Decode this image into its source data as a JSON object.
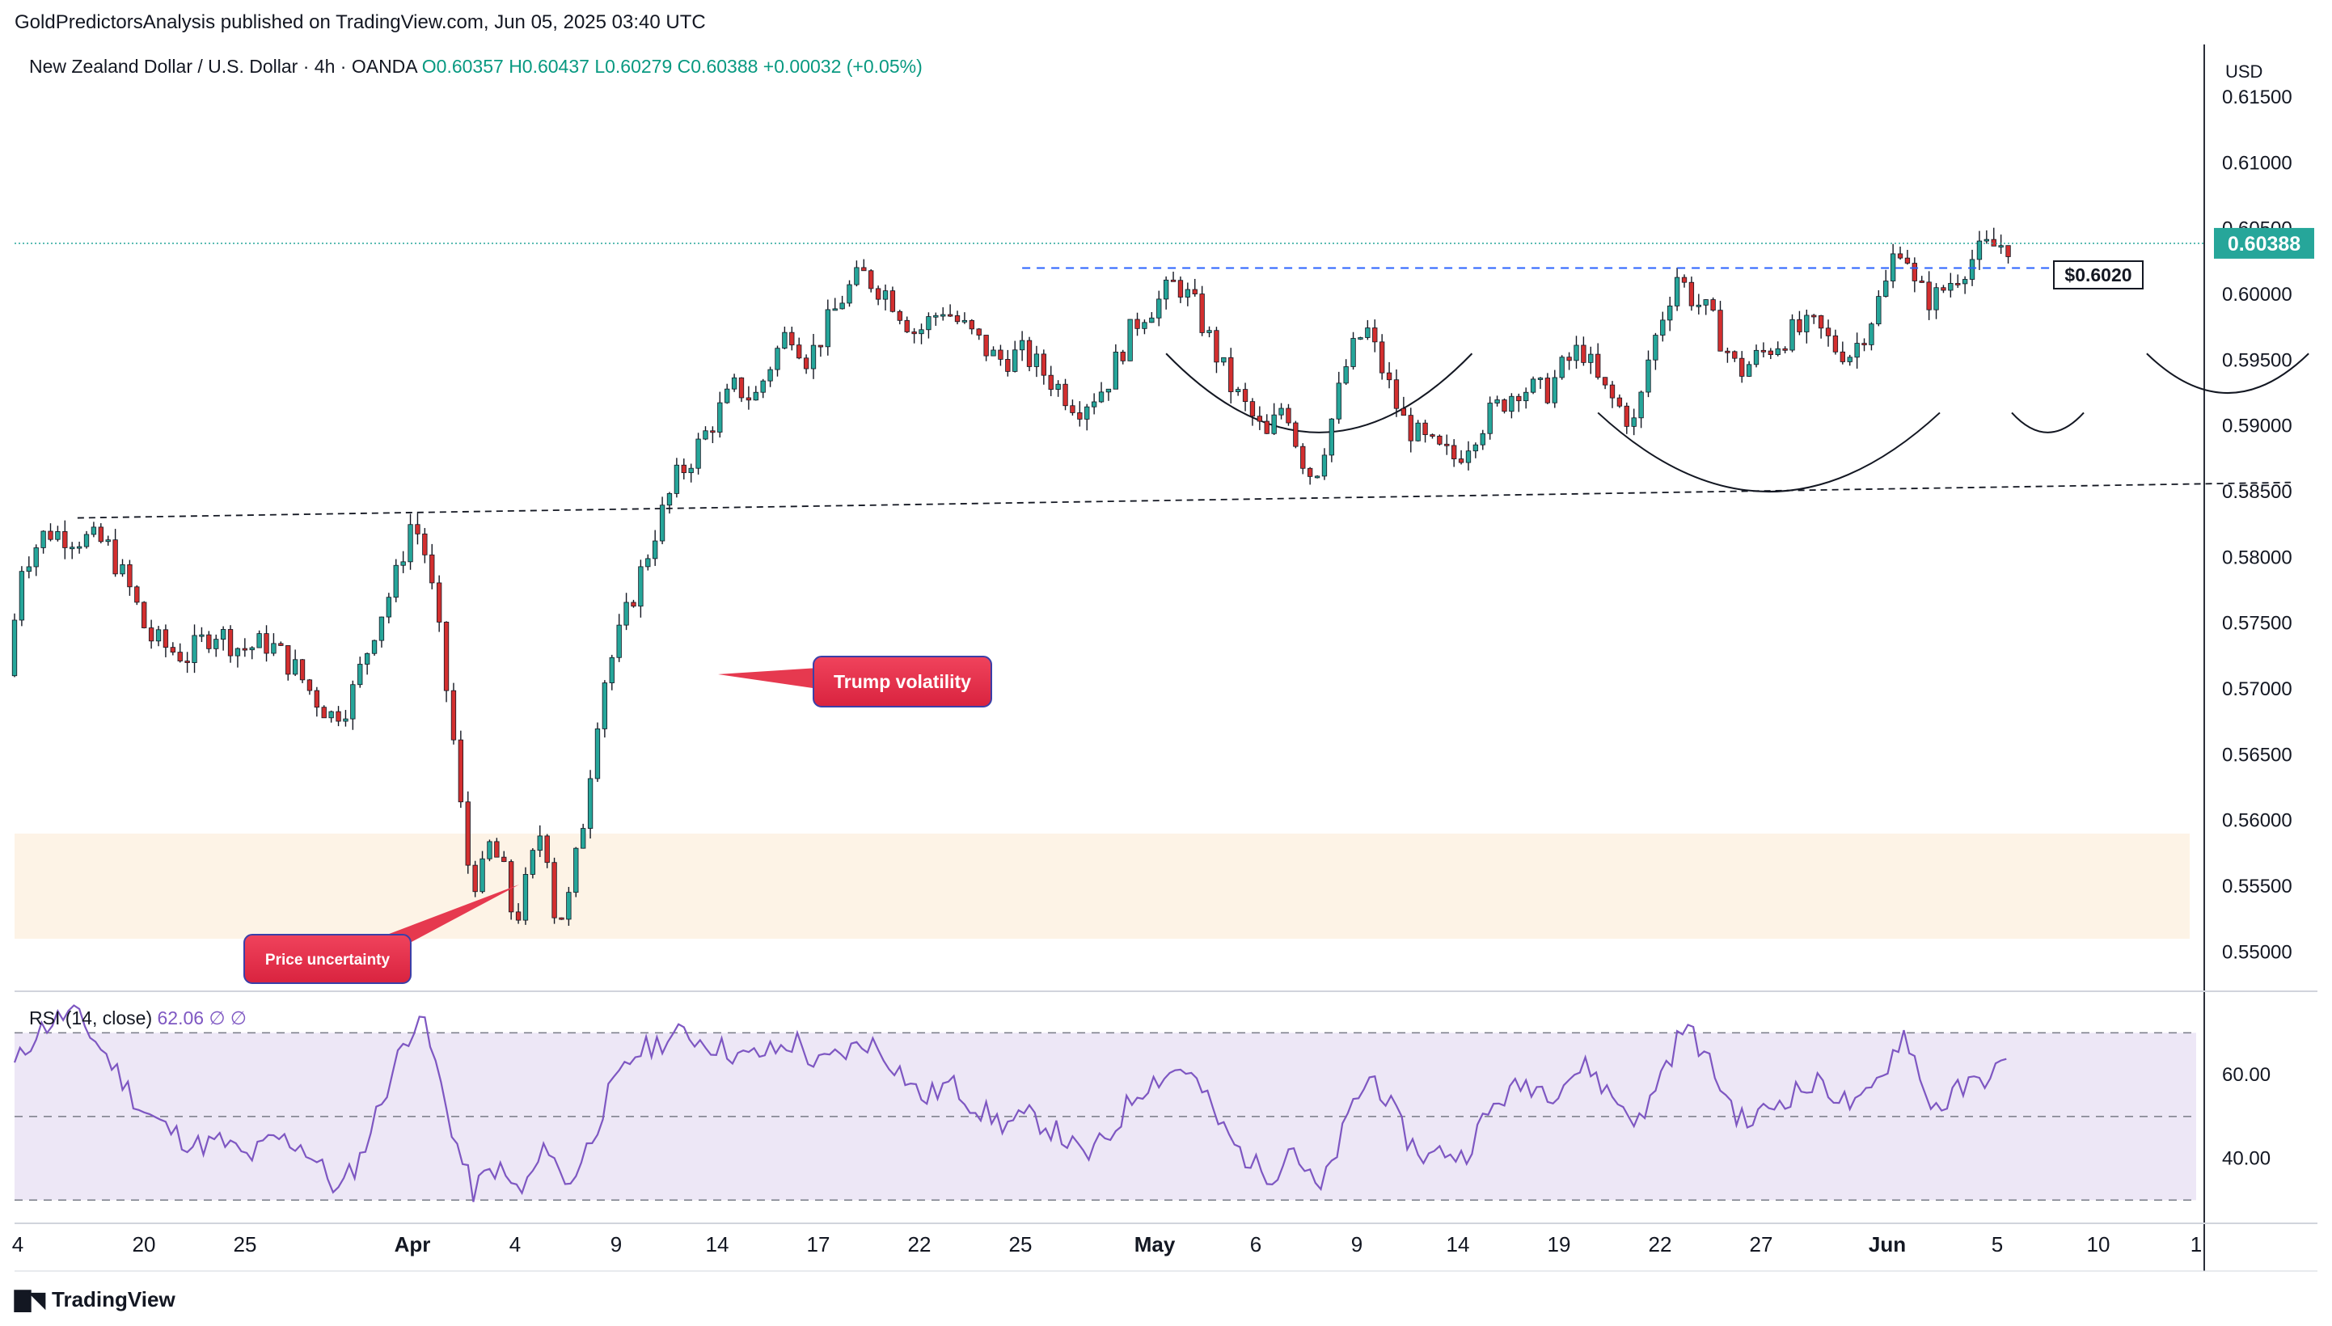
{
  "header": {
    "published": "GoldPredictorsAnalysis published on TradingView.com, Jun 05, 2025 03:40 UTC"
  },
  "footer": {
    "brand": "TradingView"
  },
  "colors": {
    "up": "#26a69a",
    "down": "#d32f2f",
    "rsi": "#7e57c2",
    "support_zone": "#fdf3e6",
    "rsi_band": "#ede7f6",
    "price_tag": "#26a69a",
    "annotation": "#e6394f"
  },
  "chart_data": [
    {
      "type": "candlestick",
      "symbol_info": {
        "name": "New Zealand Dollar / U.S. Dollar",
        "interval": "4h",
        "exchange": "OANDA",
        "O": "O0.60357",
        "H": "H0.60437",
        "L": "L0.60279",
        "C": "C0.60388",
        "change": "+0.00032 (+0.05%)"
      },
      "currency": "USD",
      "ylim": [
        0.5475,
        0.619
      ],
      "y_ticks": [
        0.615,
        0.61,
        0.605,
        0.6,
        0.595,
        0.59,
        0.585,
        0.58,
        0.575,
        0.57,
        0.565,
        0.56,
        0.555,
        0.55
      ],
      "y_tick_labels": [
        "0.61500",
        "0.61000",
        "0.60500",
        "0.60000",
        "0.59500",
        "0.59000",
        "0.58500",
        "0.58000",
        "0.57500",
        "0.57000",
        "0.56500",
        "0.56000",
        "0.55500",
        "0.55000"
      ],
      "x_ticks": [
        "4",
        "20",
        "25",
        "Apr",
        "4",
        "9",
        "14",
        "17",
        "22",
        "25",
        "May",
        "6",
        "9",
        "14",
        "19",
        "22",
        "27",
        "Jun",
        "5",
        "10",
        "1"
      ],
      "last_price": "0.60388",
      "last_price_value": 0.60388,
      "level_label": "$0.6020",
      "level_value": 0.602,
      "support_zone": [
        0.551,
        0.559
      ],
      "anchors": [
        [
          0,
          0.571
        ],
        [
          8,
          0.5795
        ],
        [
          22,
          0.582
        ],
        [
          40,
          0.5815
        ],
        [
          55,
          0.581
        ],
        [
          70,
          0.577
        ],
        [
          78,
          0.574
        ],
        [
          90,
          0.573
        ],
        [
          100,
          0.5725
        ],
        [
          115,
          0.5745
        ],
        [
          130,
          0.573
        ],
        [
          145,
          0.5735
        ],
        [
          160,
          0.5715
        ],
        [
          170,
          0.5695
        ],
        [
          180,
          0.568
        ],
        [
          190,
          0.569
        ],
        [
          205,
          0.575
        ],
        [
          215,
          0.578
        ],
        [
          225,
          0.583
        ],
        [
          233,
          0.58
        ],
        [
          240,
          0.574
        ],
        [
          248,
          0.566
        ],
        [
          255,
          0.557
        ],
        [
          262,
          0.555
        ],
        [
          268,
          0.558
        ],
        [
          275,
          0.5565
        ],
        [
          282,
          0.552
        ],
        [
          290,
          0.556
        ],
        [
          298,
          0.56
        ],
        [
          305,
          0.552
        ],
        [
          312,
          0.554
        ],
        [
          320,
          0.56
        ],
        [
          330,
          0.57
        ],
        [
          345,
          0.576
        ],
        [
          360,
          0.582
        ],
        [
          372,
          0.586
        ],
        [
          382,
          0.588
        ],
        [
          395,
          0.591
        ],
        [
          405,
          0.593
        ],
        [
          415,
          0.592
        ],
        [
          425,
          0.595
        ],
        [
          435,
          0.5975
        ],
        [
          445,
          0.595
        ],
        [
          455,
          0.5975
        ],
        [
          465,
          0.6
        ],
        [
          475,
          0.6015
        ],
        [
          490,
          0.6
        ],
        [
          505,
          0.597
        ],
        [
          520,
          0.599
        ],
        [
          535,
          0.597
        ],
        [
          550,
          0.595
        ],
        [
          565,
          0.5955
        ],
        [
          580,
          0.5935
        ],
        [
          595,
          0.5915
        ],
        [
          610,
          0.593
        ],
        [
          620,
          0.596
        ],
        [
          630,
          0.5985
        ],
        [
          640,
          0.5995
        ],
        [
          650,
          0.601
        ],
        [
          660,
          0.599
        ],
        [
          670,
          0.596
        ],
        [
          680,
          0.593
        ],
        [
          690,
          0.591
        ],
        [
          700,
          0.589
        ],
        [
          710,
          0.592
        ],
        [
          718,
          0.588
        ],
        [
          726,
          0.586
        ],
        [
          735,
          0.59
        ],
        [
          745,
          0.595
        ],
        [
          755,
          0.5975
        ],
        [
          765,
          0.594
        ],
        [
          775,
          0.5905
        ],
        [
          785,
          0.589
        ],
        [
          795,
          0.588
        ],
        [
          805,
          0.5875
        ],
        [
          815,
          0.5895
        ],
        [
          825,
          0.591
        ],
        [
          840,
          0.593
        ],
        [
          855,
          0.5925
        ],
        [
          865,
          0.5945
        ],
        [
          875,
          0.596
        ],
        [
          885,
          0.593
        ],
        [
          895,
          0.5915
        ],
        [
          905,
          0.59
        ],
        [
          912,
          0.595
        ],
        [
          920,
          0.5985
        ],
        [
          928,
          0.6015
        ],
        [
          935,
          0.6
        ],
        [
          945,
          0.5985
        ],
        [
          955,
          0.596
        ],
        [
          962,
          0.594
        ],
        [
          975,
          0.5955
        ],
        [
          990,
          0.597
        ],
        [
          1005,
          0.5975
        ],
        [
          1015,
          0.596
        ],
        [
          1025,
          0.5955
        ],
        [
          1035,
          0.598
        ],
        [
          1045,
          0.601
        ],
        [
          1050,
          0.604
        ],
        [
          1055,
          0.6035
        ],
        [
          1060,
          0.6005
        ],
        [
          1070,
          0.5995
        ],
        [
          1080,
          0.601
        ],
        [
          1090,
          0.6025
        ],
        [
          1100,
          0.6035
        ],
        [
          1108,
          0.6038
        ]
      ],
      "patterns": {
        "rounded_bottoms": [
          {
            "x": [
              640,
              810
            ],
            "y_bottom": 0.5895,
            "y_top": 0.5955
          },
          {
            "x": [
              880,
              1070
            ],
            "y_bottom": 0.585,
            "y_top": 0.591
          },
          {
            "x": [
              1110,
              1150
            ],
            "y_bottom": 0.5895,
            "y_top": 0.591
          },
          {
            "x": [
              1185,
              1275
            ],
            "y_bottom": 0.5925,
            "y_top": 0.5955
          },
          {
            "x": [
              1295,
              1330
            ],
            "y_bottom": 0.599,
            "y_top": 0.6005
          }
        ],
        "trendline": {
          "x": [
            35,
            1265
          ],
          "y": [
            0.583,
            0.5857
          ]
        }
      },
      "annotations": [
        {
          "text": "Trump volatility",
          "y": 0.5697
        },
        {
          "text": "Price uncertainty",
          "y": 0.5485
        }
      ]
    },
    {
      "type": "line",
      "label": "RSI (14, close)",
      "value_label": "62.06",
      "extra": "∅ ∅",
      "ylim": [
        26,
        78
      ],
      "y_ticks": [
        60,
        40
      ],
      "y_tick_labels": [
        "60.00",
        "40.00"
      ],
      "bands": [
        30,
        50,
        70
      ],
      "anchors": [
        [
          0,
          62
        ],
        [
          12,
          70
        ],
        [
          22,
          73
        ],
        [
          32,
          75
        ],
        [
          42,
          70
        ],
        [
          55,
          62
        ],
        [
          70,
          52
        ],
        [
          85,
          47
        ],
        [
          100,
          43
        ],
        [
          115,
          44
        ],
        [
          130,
          40
        ],
        [
          145,
          45
        ],
        [
          160,
          43
        ],
        [
          170,
          38
        ],
        [
          180,
          32
        ],
        [
          192,
          40
        ],
        [
          205,
          55
        ],
        [
          215,
          66
        ],
        [
          225,
          75
        ],
        [
          233,
          64
        ],
        [
          240,
          52
        ],
        [
          248,
          40
        ],
        [
          255,
          32
        ],
        [
          262,
          36
        ],
        [
          268,
          38
        ],
        [
          275,
          34
        ],
        [
          282,
          32
        ],
        [
          290,
          38
        ],
        [
          298,
          44
        ],
        [
          305,
          33
        ],
        [
          312,
          37
        ],
        [
          320,
          44
        ],
        [
          330,
          55
        ],
        [
          345,
          65
        ],
        [
          360,
          68
        ],
        [
          372,
          70
        ],
        [
          382,
          68
        ],
        [
          395,
          66
        ],
        [
          405,
          64
        ],
        [
          415,
          65
        ],
        [
          425,
          66
        ],
        [
          435,
          68
        ],
        [
          445,
          62
        ],
        [
          455,
          64
        ],
        [
          465,
          66
        ],
        [
          475,
          68
        ],
        [
          490,
          62
        ],
        [
          505,
          54
        ],
        [
          520,
          58
        ],
        [
          535,
          52
        ],
        [
          550,
          48
        ],
        [
          565,
          50
        ],
        [
          580,
          46
        ],
        [
          595,
          40
        ],
        [
          610,
          46
        ],
        [
          620,
          54
        ],
        [
          630,
          58
        ],
        [
          640,
          60
        ],
        [
          650,
          62
        ],
        [
          660,
          56
        ],
        [
          670,
          48
        ],
        [
          680,
          42
        ],
        [
          690,
          38
        ],
        [
          700,
          36
        ],
        [
          710,
          44
        ],
        [
          718,
          36
        ],
        [
          726,
          32
        ],
        [
          735,
          42
        ],
        [
          745,
          54
        ],
        [
          755,
          60
        ],
        [
          765,
          52
        ],
        [
          775,
          44
        ],
        [
          785,
          40
        ],
        [
          795,
          42
        ],
        [
          805,
          40
        ],
        [
          815,
          48
        ],
        [
          825,
          54
        ],
        [
          840,
          58
        ],
        [
          855,
          56
        ],
        [
          865,
          60
        ],
        [
          875,
          62
        ],
        [
          885,
          56
        ],
        [
          895,
          52
        ],
        [
          905,
          48
        ],
        [
          912,
          58
        ],
        [
          920,
          64
        ],
        [
          928,
          72
        ],
        [
          935,
          68
        ],
        [
          945,
          60
        ],
        [
          955,
          52
        ],
        [
          962,
          48
        ],
        [
          975,
          52
        ],
        [
          990,
          56
        ],
        [
          1005,
          58
        ],
        [
          1015,
          54
        ],
        [
          1025,
          52
        ],
        [
          1035,
          58
        ],
        [
          1045,
          66
        ],
        [
          1050,
          70
        ],
        [
          1055,
          66
        ],
        [
          1060,
          56
        ],
        [
          1070,
          52
        ],
        [
          1080,
          56
        ],
        [
          1090,
          58
        ],
        [
          1100,
          61
        ],
        [
          1108,
          62
        ]
      ]
    }
  ]
}
